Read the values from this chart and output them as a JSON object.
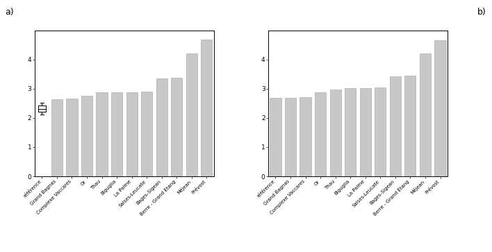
{
  "categories": [
    "référence",
    "Grand Bagnas",
    "Complexe Vaccares",
    "Or",
    "Thau",
    "Biguglia",
    "La Palme",
    "Salses-Leucate",
    "Bages-Sigean",
    "Berre - Grand Etang",
    "Méjean",
    "Prévost"
  ],
  "values_a": [
    2.3,
    2.65,
    2.67,
    2.75,
    2.87,
    2.87,
    2.87,
    2.9,
    3.35,
    3.38,
    4.2,
    4.68
  ],
  "values_b": [
    2.68,
    2.68,
    2.72,
    2.88,
    2.98,
    3.02,
    3.02,
    3.05,
    3.42,
    3.45,
    4.2,
    4.65
  ],
  "boxplot_a": {
    "median": 2.3,
    "q1": 2.2,
    "q3": 2.42,
    "whisker_low": 2.12,
    "whisker_high": 2.52
  },
  "bar_color": "#c8c8c8",
  "bar_edgecolor": "#a0a0a0",
  "ylim": [
    0,
    5
  ],
  "yticks": [
    0,
    1,
    2,
    3,
    4
  ],
  "label_a": "a)",
  "label_b": "b)",
  "background_color": "#ffffff",
  "fig_width": 7.08,
  "fig_height": 3.63
}
